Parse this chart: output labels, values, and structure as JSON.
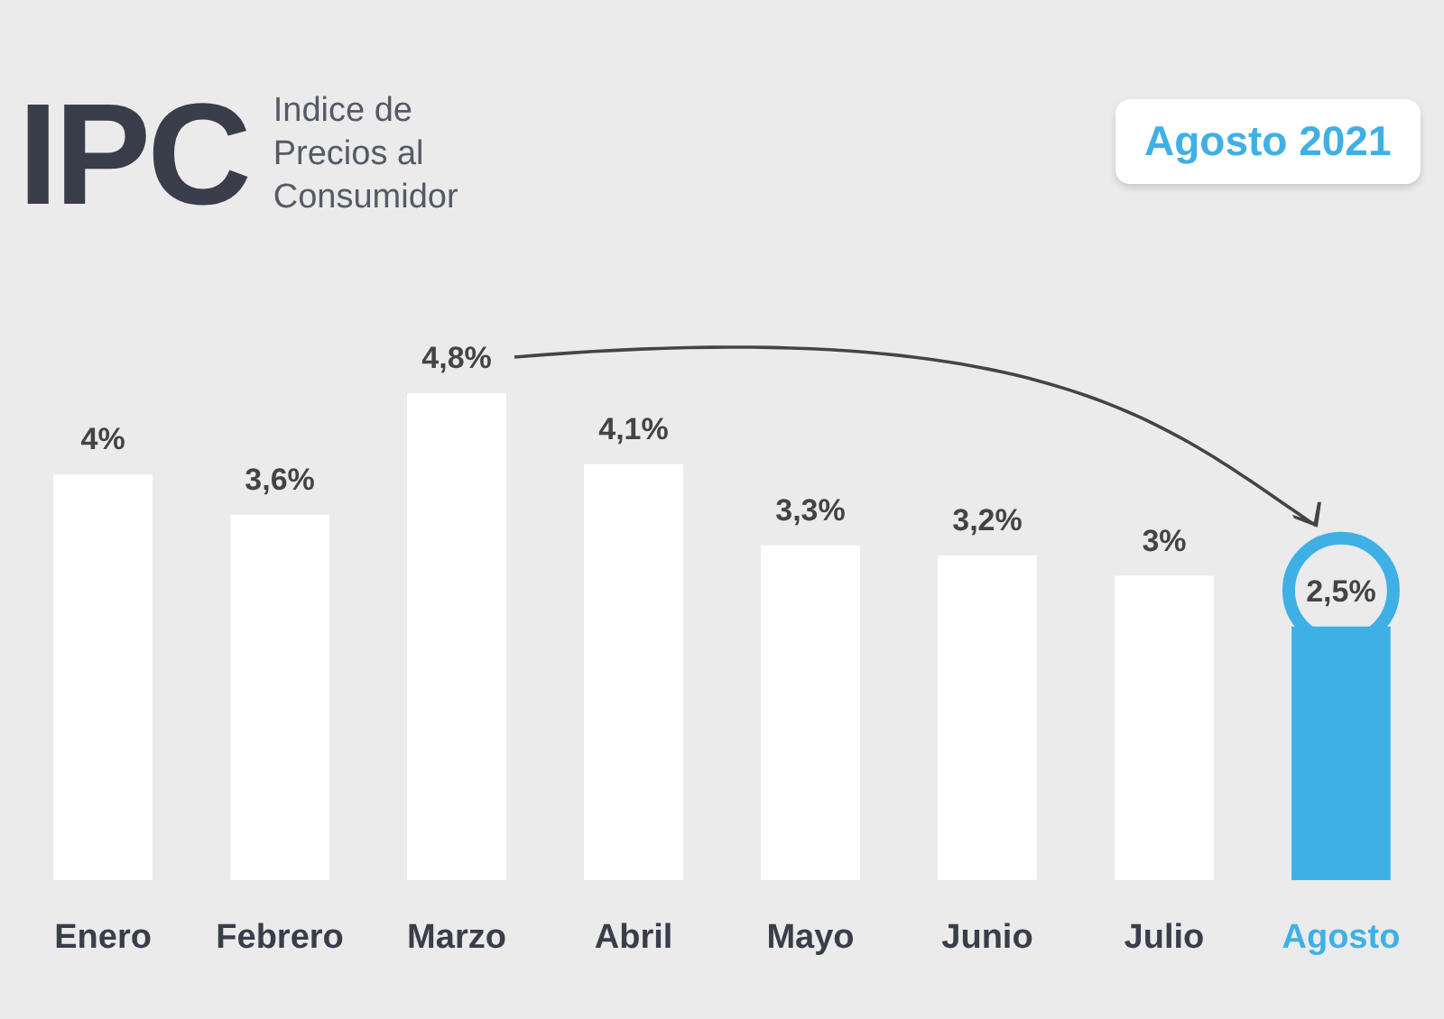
{
  "chart_data": {
    "type": "bar",
    "title": "IPC",
    "subtitle": "Indice de Precios al Consumidor",
    "annotations": [
      "Agosto 2021"
    ],
    "categories": [
      "Enero",
      "Febrero",
      "Marzo",
      "Abril",
      "Mayo",
      "Junio",
      "Julio",
      "Agosto"
    ],
    "values": [
      4,
      3.6,
      4.8,
      4.1,
      3.3,
      3.2,
      3,
      2.5
    ],
    "value_labels": [
      "4%",
      "3,6%",
      "4,8%",
      "4,1%",
      "3,3%",
      "3,2%",
      "3%",
      "2,5%"
    ],
    "colors": [
      "#ffffff",
      "#ffffff",
      "#ffffff",
      "#ffffff",
      "#ffffff",
      "#ffffff",
      "#ffffff",
      "#3fb0e6"
    ]
  }
}
